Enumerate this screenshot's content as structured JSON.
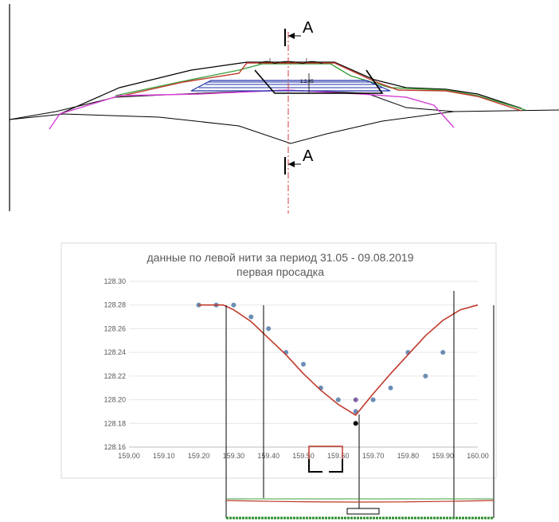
{
  "section_drawing": {
    "section_label_top": "A",
    "section_label_bottom": "A",
    "slope_note": "1:2,45"
  },
  "chart_data": {
    "type": "scatter",
    "title": "данные по левой нити за период 31.05 - 09.08.2019",
    "subtitle": "первая просадка",
    "xlabel": "",
    "ylabel": "",
    "xlim": [
      159.0,
      160.0
    ],
    "ylim": [
      128.16,
      128.3
    ],
    "x_ticks": [
      "159.00",
      "159.10",
      "159.20",
      "159.30",
      "159.40",
      "159.50",
      "159.60",
      "159.70",
      "159.80",
      "159.90",
      "160.00"
    ],
    "y_ticks": [
      "128.16",
      "128.18",
      "128.20",
      "128.22",
      "128.24",
      "128.26",
      "128.28",
      "128.30"
    ],
    "grid": true,
    "legend": "none",
    "series": [
      {
        "type": "scatter",
        "color": "#6b8db5",
        "points": [
          {
            "x": 159.2,
            "y": 128.28
          },
          {
            "x": 159.25,
            "y": 128.28
          },
          {
            "x": 159.3,
            "y": 128.28
          },
          {
            "x": 159.35,
            "y": 128.27
          },
          {
            "x": 159.4,
            "y": 128.26
          },
          {
            "x": 159.45,
            "y": 128.24
          },
          {
            "x": 159.5,
            "y": 128.23
          },
          {
            "x": 159.55,
            "y": 128.21
          },
          {
            "x": 159.6,
            "y": 128.2
          },
          {
            "x": 159.65,
            "y": 128.19
          },
          {
            "x": 159.7,
            "y": 128.2
          },
          {
            "x": 159.75,
            "y": 128.21
          },
          {
            "x": 159.8,
            "y": 128.24
          },
          {
            "x": 159.85,
            "y": 128.22
          },
          {
            "x": 159.9,
            "y": 128.24
          }
        ]
      },
      {
        "type": "scatter",
        "color": "#8064a2",
        "points": [
          {
            "x": 159.65,
            "y": 128.2
          }
        ]
      },
      {
        "type": "scatter",
        "color": "#000000",
        "points": [
          {
            "x": 159.65,
            "y": 128.18
          }
        ]
      },
      {
        "type": "line",
        "color": "#c0392b",
        "points": [
          {
            "x": 159.2,
            "y": 128.28
          },
          {
            "x": 159.27,
            "y": 128.28
          },
          {
            "x": 159.3,
            "y": 128.276
          },
          {
            "x": 159.35,
            "y": 128.266
          },
          {
            "x": 159.4,
            "y": 128.252
          },
          {
            "x": 159.45,
            "y": 128.238
          },
          {
            "x": 159.5,
            "y": 128.222
          },
          {
            "x": 159.55,
            "y": 128.208
          },
          {
            "x": 159.6,
            "y": 128.196
          },
          {
            "x": 159.65,
            "y": 128.187
          },
          {
            "x": 159.7,
            "y": 128.205
          },
          {
            "x": 159.75,
            "y": 128.222
          },
          {
            "x": 159.8,
            "y": 128.238
          },
          {
            "x": 159.85,
            "y": 128.254
          },
          {
            "x": 159.9,
            "y": 128.267
          },
          {
            "x": 159.95,
            "y": 128.276
          },
          {
            "x": 160.0,
            "y": 128.28
          }
        ]
      }
    ]
  }
}
